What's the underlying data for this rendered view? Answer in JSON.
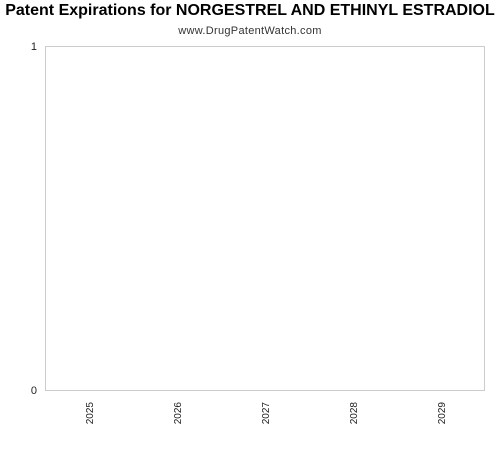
{
  "chart_data": {
    "type": "bar",
    "title": "Patent Expirations for NORGESTREL AND ETHINYL ESTRADIOL",
    "subtitle": "www.DrugPatentWatch.com",
    "categories": [
      "2025",
      "2026",
      "2027",
      "2028",
      "2029"
    ],
    "values": [
      0,
      0,
      0,
      0,
      0
    ],
    "ylim": [
      0,
      1
    ],
    "yticks": [
      "0",
      "1"
    ],
    "xlabel": "",
    "ylabel": "",
    "grid": false,
    "colors": {
      "axis": "#cccccc",
      "text": "#222222"
    }
  }
}
